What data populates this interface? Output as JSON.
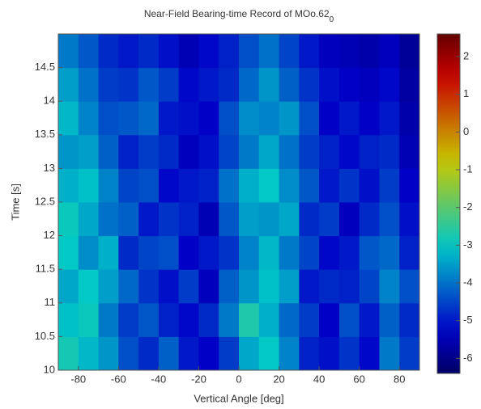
{
  "chart_data": {
    "type": "heatmap",
    "title": "Near-Field Bearing-time Record of MOo.62",
    "title_subscript": "0",
    "x_label": "Vertical Angle [deg]",
    "y_label": "Time [s]",
    "colormap": "jet",
    "x": [
      -85,
      -75,
      -65,
      -55,
      -45,
      -35,
      -25,
      -15,
      -5,
      5,
      15,
      25,
      35,
      45,
      55,
      65,
      75,
      85
    ],
    "y": [
      10.25,
      10.75,
      11.25,
      11.75,
      12.25,
      12.75,
      13.25,
      13.75,
      14.25,
      14.75
    ],
    "z": [
      [
        -2.8,
        -3.2,
        -3.6,
        -4.4,
        -4.8,
        -4.2,
        -5.0,
        -5.3,
        -4.6,
        -3.4,
        -3.0,
        -3.8,
        -4.9,
        -5.1,
        -4.7,
        -5.2,
        -3.9,
        -4.6
      ],
      [
        -3.1,
        -2.9,
        -3.9,
        -4.6,
        -4.3,
        -4.9,
        -5.2,
        -4.8,
        -3.9,
        -2.7,
        -3.3,
        -4.1,
        -4.6,
        -5.3,
        -4.4,
        -5.0,
        -4.2,
        -4.8
      ],
      [
        -3.4,
        -3.0,
        -3.5,
        -4.1,
        -4.7,
        -5.1,
        -4.6,
        -5.4,
        -4.2,
        -3.6,
        -3.1,
        -3.5,
        -5.0,
        -4.8,
        -4.9,
        -4.5,
        -3.8,
        -4.4
      ],
      [
        -3.0,
        -3.7,
        -3.3,
        -4.8,
        -4.5,
        -4.4,
        -5.3,
        -5.0,
        -4.7,
        -3.8,
        -3.2,
        -3.9,
        -4.5,
        -5.2,
        -5.0,
        -4.3,
        -4.1,
        -4.9
      ],
      [
        -2.9,
        -3.4,
        -4.0,
        -4.2,
        -5.0,
        -4.7,
        -4.9,
        -5.5,
        -4.3,
        -3.5,
        -3.6,
        -3.4,
        -4.8,
        -4.6,
        -5.4,
        -4.8,
        -4.4,
        -5.1
      ],
      [
        -3.3,
        -3.1,
        -3.8,
        -4.5,
        -4.4,
        -5.2,
        -5.0,
        -4.9,
        -4.0,
        -3.3,
        -3.0,
        -3.7,
        -4.3,
        -5.0,
        -4.7,
        -5.1,
        -4.6,
        -5.3
      ],
      [
        -3.6,
        -3.5,
        -4.2,
        -4.9,
        -4.6,
        -4.8,
        -5.4,
        -5.1,
        -4.5,
        -3.9,
        -3.4,
        -4.0,
        -4.6,
        -4.9,
        -5.2,
        -4.9,
        -4.8,
        -5.5
      ],
      [
        -3.2,
        -3.8,
        -4.4,
        -4.3,
        -4.1,
        -5.0,
        -5.1,
        -5.3,
        -4.4,
        -3.7,
        -3.8,
        -3.6,
        -4.4,
        -5.3,
        -5.0,
        -5.3,
        -5.0,
        -5.6
      ],
      [
        -3.5,
        -4.0,
        -4.6,
        -4.7,
        -4.3,
        -4.6,
        -5.2,
        -5.0,
        -4.8,
        -4.1,
        -3.6,
        -4.2,
        -4.7,
        -5.1,
        -5.3,
        -5.4,
        -5.2,
        -5.7
      ],
      [
        -3.9,
        -4.3,
        -4.8,
        -5.0,
        -4.8,
        -5.1,
        -5.5,
        -5.2,
        -4.9,
        -4.4,
        -4.0,
        -4.5,
        -5.0,
        -5.4,
        -5.5,
        -5.6,
        -5.4,
        -5.8
      ]
    ],
    "xlim": [
      -90,
      90
    ],
    "xticks": [
      -80,
      -60,
      -40,
      -20,
      0,
      20,
      40,
      60,
      80
    ],
    "ylim": [
      10,
      15
    ],
    "yticks": [
      10,
      10.5,
      11,
      11.5,
      12,
      12.5,
      13,
      13.5,
      14,
      14.5
    ],
    "clim": [
      -6.4,
      2.6
    ],
    "cticks": [
      2,
      1,
      0,
      -1,
      -2,
      -3,
      -4,
      -5,
      -6
    ]
  }
}
